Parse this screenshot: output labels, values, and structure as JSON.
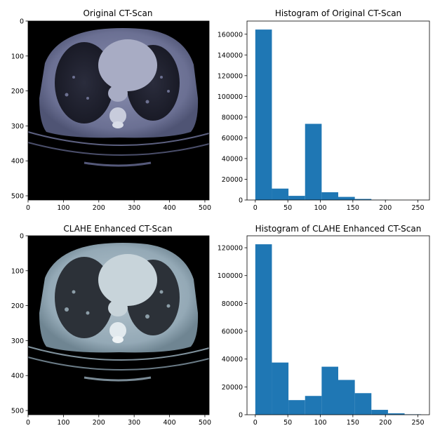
{
  "figure": {
    "panels": [
      {
        "kind": "image",
        "title": "Original CT-Scan",
        "variant": "original",
        "xticks": [
          0,
          100,
          200,
          300,
          400,
          500
        ],
        "yticks": [
          0,
          100,
          200,
          300,
          400,
          500
        ],
        "xlim": [
          0,
          512
        ],
        "ylim": [
          512,
          0
        ],
        "colormap": "bone"
      },
      {
        "kind": "histogram",
        "chart_ref": 0
      },
      {
        "kind": "image",
        "title": "CLAHE Enhanced CT-Scan",
        "variant": "clahe",
        "xticks": [
          0,
          100,
          200,
          300,
          400,
          500
        ],
        "yticks": [
          0,
          100,
          200,
          300,
          400,
          500
        ],
        "xlim": [
          0,
          512
        ],
        "ylim": [
          512,
          0
        ],
        "colormap": "bone"
      },
      {
        "kind": "histogram",
        "chart_ref": 1
      }
    ],
    "bar_color": "#1f77b4"
  },
  "chart_data": [
    {
      "type": "bar",
      "title": "Histogram of Original CT-Scan",
      "bin_edges": [
        0,
        25.5,
        51,
        76.5,
        102,
        127.5,
        153,
        178.5,
        204,
        229.5,
        255
      ],
      "values": [
        164500,
        11000,
        4000,
        73500,
        7500,
        3000,
        1000,
        200,
        50,
        20
      ],
      "xlim": [
        -12.75,
        267.75
      ],
      "ylim": [
        0,
        172700
      ],
      "xticks": [
        0,
        50,
        100,
        150,
        200,
        250
      ],
      "yticks": [
        0,
        20000,
        40000,
        60000,
        80000,
        100000,
        120000,
        140000,
        160000
      ],
      "xlabel": "",
      "ylabel": ""
    },
    {
      "type": "bar",
      "title": "Histogram of CLAHE Enhanced CT-Scan",
      "bin_edges": [
        0,
        25.5,
        51,
        76.5,
        102,
        127.5,
        153,
        178.5,
        204,
        229.5,
        255
      ],
      "values": [
        122500,
        37500,
        10500,
        13500,
        34500,
        25000,
        15500,
        3500,
        1000,
        300
      ],
      "xlim": [
        -12.75,
        267.75
      ],
      "ylim": [
        0,
        128600
      ],
      "xticks": [
        0,
        50,
        100,
        150,
        200,
        250
      ],
      "yticks": [
        0,
        20000,
        40000,
        60000,
        80000,
        100000,
        120000
      ],
      "xlabel": "",
      "ylabel": ""
    }
  ]
}
